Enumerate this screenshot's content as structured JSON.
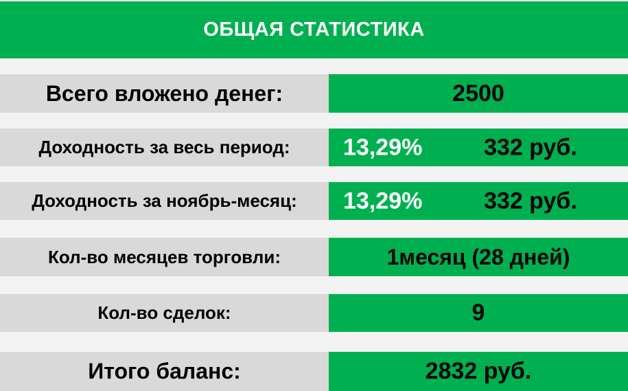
{
  "title": "ОБЩАЯ СТАТИСТИКА",
  "colors": {
    "accent_green": "#00b050",
    "label_gray": "#d9d9d9",
    "title_text": "#ffffff"
  },
  "rows": {
    "invested": {
      "label": "Всего вложено денег:",
      "value": "2500"
    },
    "total_yield": {
      "label": "Доходность за весь период:",
      "percent": "13,29%",
      "amount": "332 руб."
    },
    "month_yield": {
      "label": "Доходность за ноябрь-месяц:",
      "percent": "13,29%",
      "amount": "332 руб."
    },
    "months": {
      "label": "Кол-во месяцев торговли:",
      "value": "1месяц (28 дней)"
    },
    "deals": {
      "label": "Кол-во сделок:",
      "value": "9"
    },
    "balance": {
      "label": "Итого баланс:",
      "value": "2832 руб."
    }
  }
}
